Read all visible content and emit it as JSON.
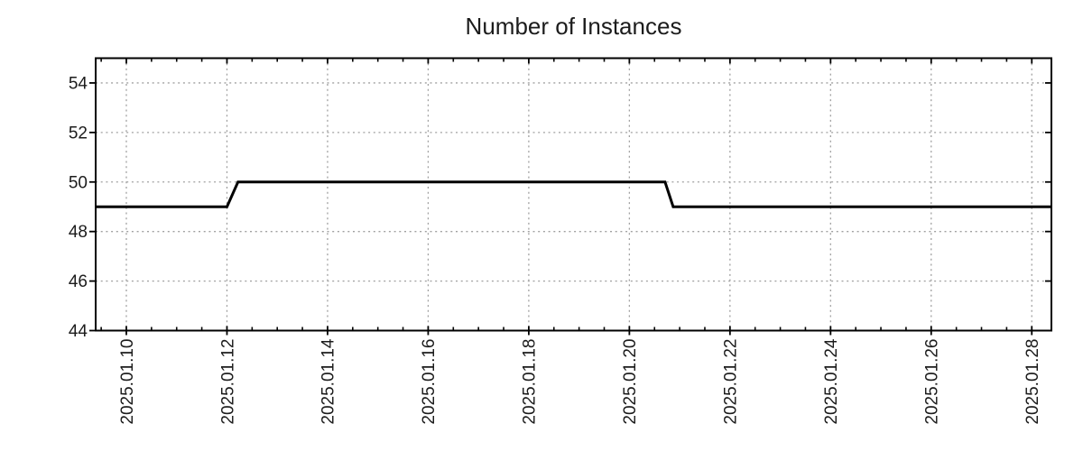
{
  "chart_data": {
    "type": "line",
    "title": "Number of Instances",
    "legend": "none",
    "grid": "dotted lines at major ticks",
    "colors": {
      "line": "#000000",
      "grid": "#a0a0a0",
      "axis": "#000000",
      "text": "#1c1c1c",
      "background": "#ffffff"
    },
    "x_axis": {
      "label": "",
      "tick_labels": [
        "2025.01.10",
        "2025.01.12",
        "2025.01.14",
        "2025.01.16",
        "2025.01.18",
        "2025.01.20",
        "2025.01.22",
        "2025.01.24",
        "2025.01.26",
        "2025.01.28"
      ],
      "major_tick_days": [
        0,
        2,
        4,
        6,
        8,
        10,
        12,
        14,
        16,
        18
      ],
      "minor_tick_step_days": 0.5,
      "range_days": [
        -0.61,
        18.39
      ],
      "day_zero": "2025-01-10 00:00",
      "label_rotation_deg": -90
    },
    "y_axis": {
      "label": "",
      "tick_labels": [
        "44",
        "46",
        "48",
        "50",
        "52",
        "54"
      ],
      "tick_values": [
        44,
        46,
        48,
        50,
        52,
        54
      ],
      "range": [
        44,
        55
      ]
    },
    "series": [
      {
        "name": "Number of Instances",
        "color": "#000000",
        "points": [
          {
            "t": "2025-01-09 09:20",
            "day": -0.61,
            "value": 49
          },
          {
            "t": "2025-01-12 00:00",
            "day": 2.0,
            "value": 49
          },
          {
            "t": "2025-01-12 05:20",
            "day": 2.22,
            "value": 50
          },
          {
            "t": "2025-01-20 17:00",
            "day": 10.71,
            "value": 50
          },
          {
            "t": "2025-01-20 20:50",
            "day": 10.87,
            "value": 49
          },
          {
            "t": "2025-01-28 09:20",
            "day": 18.39,
            "value": 49
          }
        ]
      }
    ]
  }
}
